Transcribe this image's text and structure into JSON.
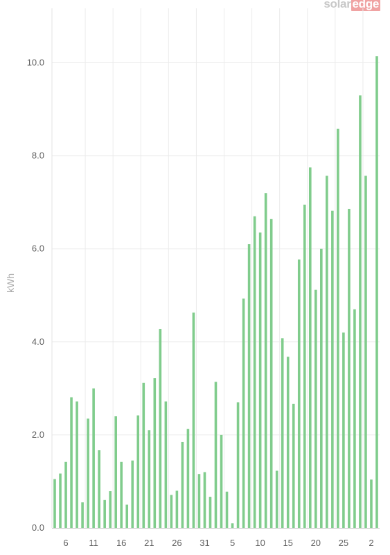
{
  "brand": {
    "part1": "solar",
    "part2": "edge",
    "accent": "#f0a3a3"
  },
  "chart_data": {
    "type": "bar",
    "ylabel": "kWh",
    "xlabel": "",
    "ylim": [
      0,
      11.2
    ],
    "grid": true,
    "bar_color": "#80cc8c",
    "yticks": [
      "0.0",
      "2.0",
      "4.0",
      "6.0",
      "8.0",
      "10.0"
    ],
    "ytick_values": [
      0,
      2,
      4,
      6,
      8,
      10
    ],
    "xtick_labels": [
      "6",
      "11",
      "16",
      "21",
      "26",
      "31",
      "5",
      "10",
      "15",
      "20",
      "25",
      "2"
    ],
    "values": [
      1.05,
      1.17,
      1.42,
      2.81,
      2.72,
      0.55,
      2.35,
      3.0,
      1.67,
      0.6,
      0.79,
      2.4,
      1.42,
      0.5,
      1.45,
      2.42,
      3.12,
      2.1,
      3.22,
      4.28,
      2.72,
      0.71,
      0.8,
      1.85,
      2.13,
      4.63,
      1.16,
      1.2,
      0.67,
      3.14,
      2.0,
      0.78,
      0.1,
      2.7,
      4.93,
      6.1,
      6.7,
      6.35,
      7.2,
      6.64,
      1.23,
      4.08,
      3.68,
      2.67,
      5.77,
      6.95,
      7.75,
      5.12,
      6.0,
      7.57,
      6.82,
      8.58,
      4.2,
      6.86,
      4.7,
      9.3,
      7.57,
      1.04,
      10.14
    ]
  }
}
